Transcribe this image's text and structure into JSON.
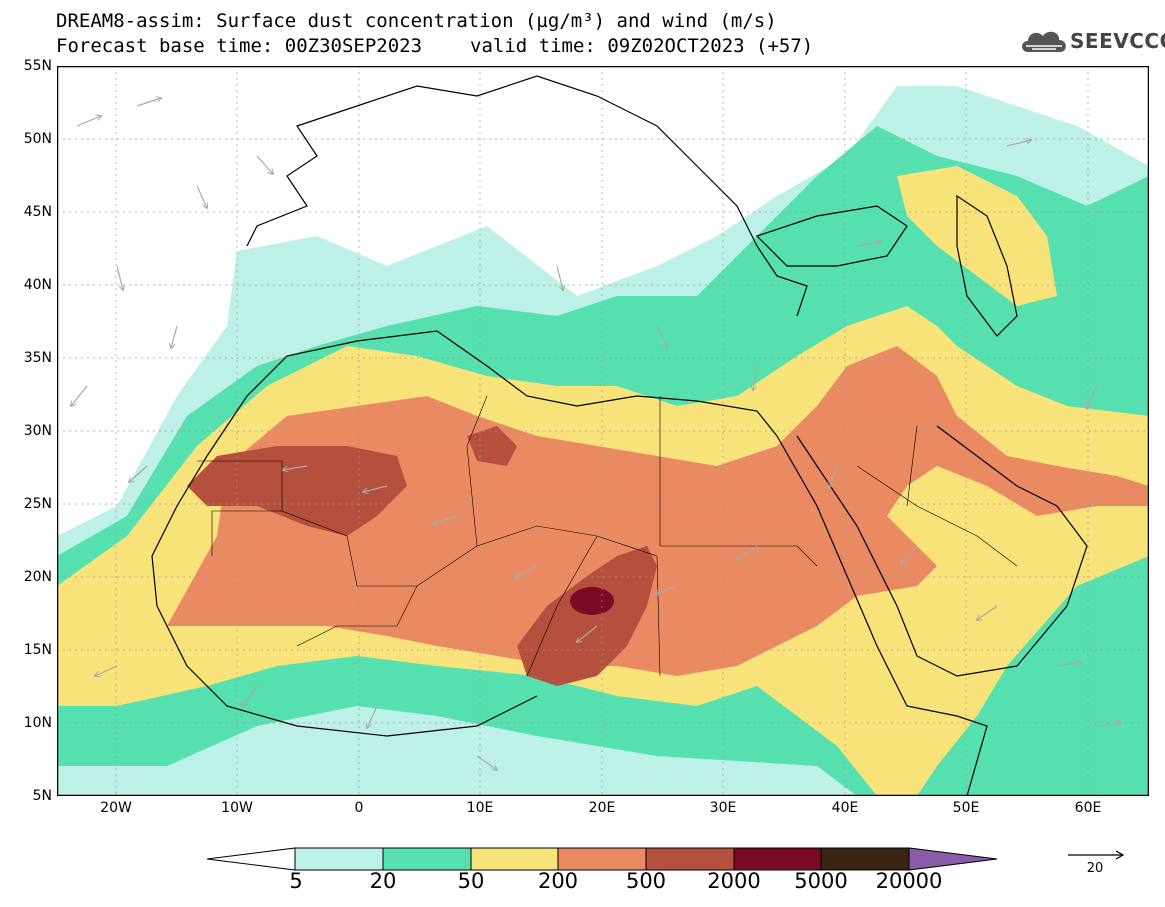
{
  "title_line1": "DREAM8-assim: Surface dust concentration (µg/m³) and wind (m/s)",
  "forecast_base": "Forecast base time: 00Z30SEP2023",
  "valid_time": "valid time: 09Z02OCT2023 (+57)",
  "logo_text": "SEEVCCC",
  "logo_icon": "cloud-icon",
  "lat_labels": [
    "55N",
    "50N",
    "45N",
    "40N",
    "35N",
    "30N",
    "25N",
    "20N",
    "15N",
    "10N",
    "5N"
  ],
  "lon_labels": [
    "20W",
    "10W",
    "0",
    "10E",
    "20E",
    "30E",
    "40E",
    "50E",
    "60E"
  ],
  "colorbar": {
    "labels": [
      "5",
      "20",
      "50",
      "200",
      "500",
      "2000",
      "5000",
      "20000"
    ],
    "colors": [
      "#ffffff",
      "#bdf0e6",
      "#56e0b0",
      "#f8e27a",
      "#ea8a62",
      "#b5503e",
      "#7a0a26",
      "#3a2412",
      "#8a5ca8"
    ]
  },
  "wind_reference": "20",
  "colors": {
    "sea": "#ffffff",
    "coast": "#000000",
    "wind_arrow": "#a9a9a9"
  }
}
